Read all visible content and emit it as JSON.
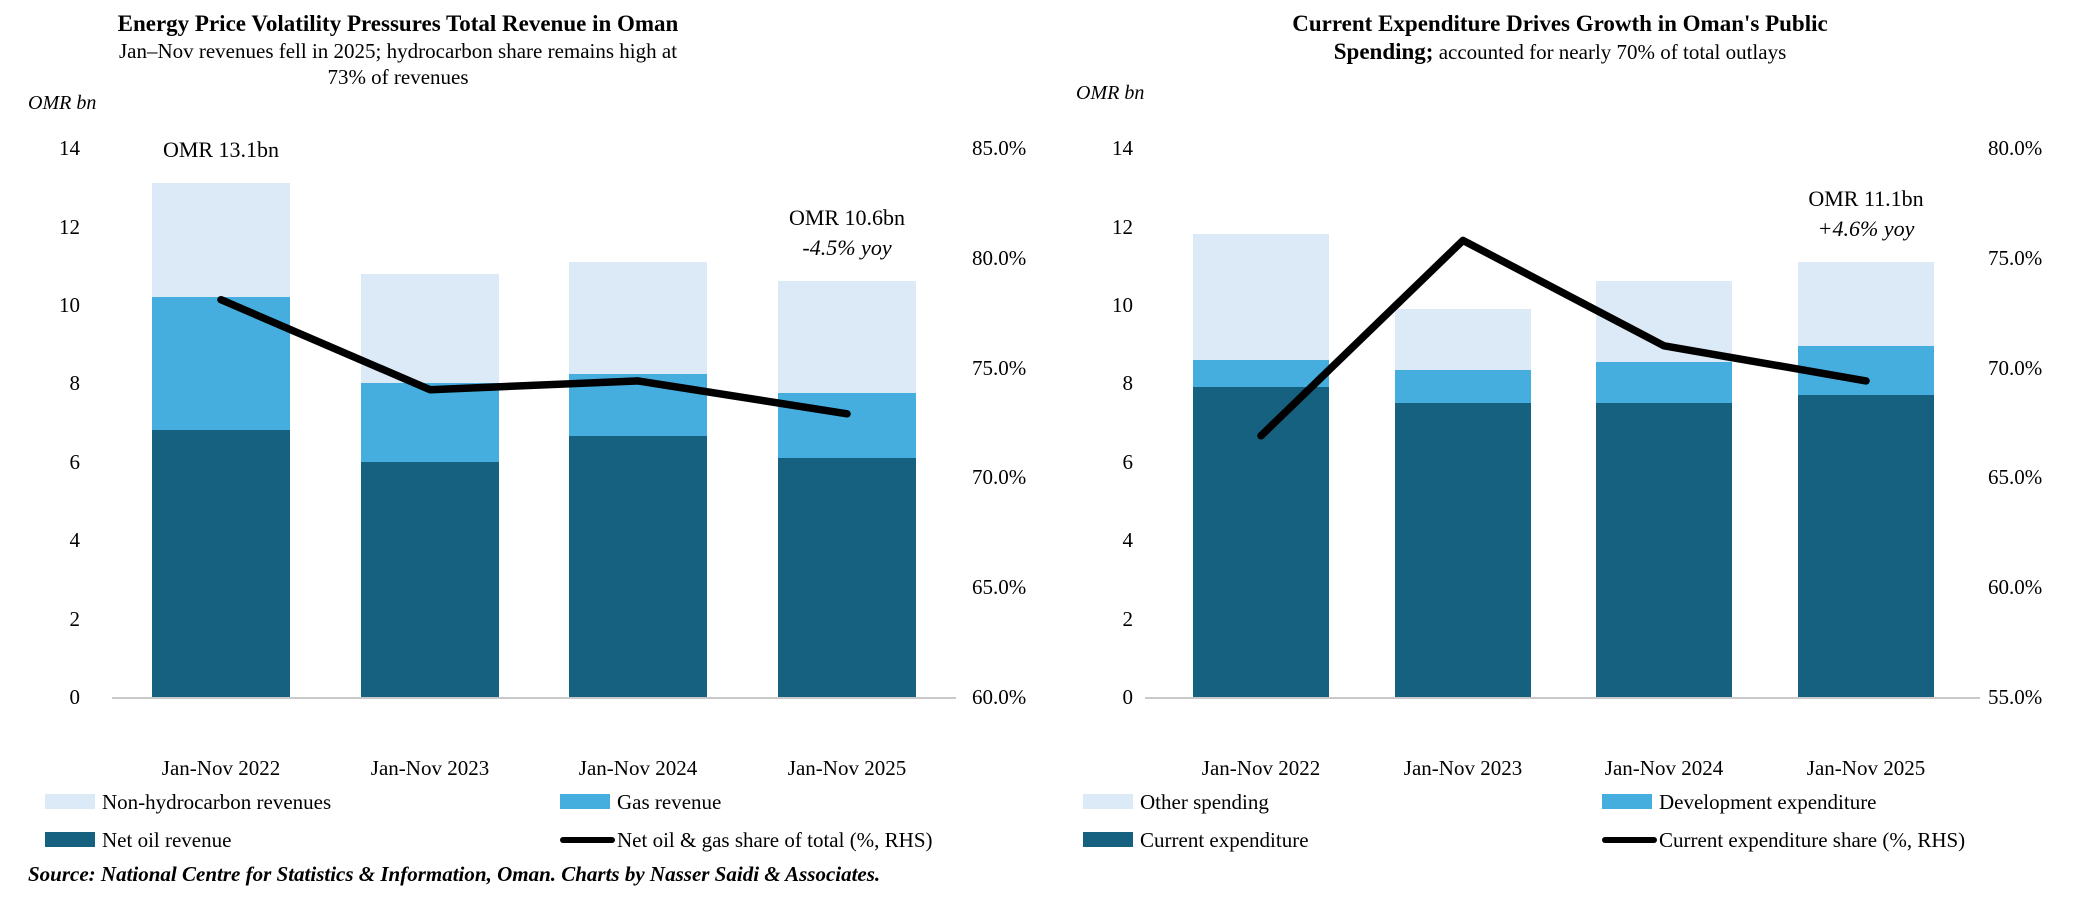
{
  "source_note": "Source: National Centre for Statistics & Information, Oman. Charts by Nasser Saidi & Associates.",
  "chart_data": [
    {
      "type": "stacked-bar+line",
      "title": "Energy Price Volatility Pressures Total Revenue in Oman",
      "subtitle_lines": [
        "Jan–Nov revenues fell in 2025; hydrocarbon share remains high at",
        "73% of revenues"
      ],
      "unit_label": "OMR bn",
      "categories": [
        "Jan-Nov 2022",
        "Jan-Nov 2023",
        "Jan-Nov 2024",
        "Jan-Nov 2025"
      ],
      "bar_series": [
        {
          "name": "Net oil revenue",
          "color": "#16617f",
          "values": [
            6.8,
            6.0,
            6.65,
            6.1
          ]
        },
        {
          "name": "Gas revenue",
          "color": "#45aedf",
          "values": [
            3.4,
            2.0,
            1.6,
            1.65
          ]
        },
        {
          "name": "Non-hydrocarbon revenues",
          "color": "#dce9f6",
          "values": [
            2.9,
            2.8,
            2.85,
            2.85
          ]
        }
      ],
      "bar_totals": [
        13.1,
        10.8,
        11.1,
        10.6
      ],
      "line_series": {
        "name": "Net oil & gas share of total (%, RHS)",
        "color": "#000000",
        "values": [
          78.1,
          74.0,
          74.4,
          72.9
        ]
      },
      "lhs_ticks": [
        "14",
        "12",
        "10",
        "8",
        "6",
        "4",
        "2",
        "0"
      ],
      "rhs_ticks": [
        "85.0%",
        "80.0%",
        "75.0%",
        "70.0%",
        "65.0%",
        "60.0%"
      ],
      "lhs_range": [
        0,
        14
      ],
      "rhs_range": [
        60,
        85
      ],
      "annotations": [
        {
          "bar": 0,
          "lines": [
            "OMR 13.1bn"
          ]
        },
        {
          "bar": 3,
          "lines": [
            "OMR 10.6bn",
            "-4.5% yoy"
          ]
        }
      ],
      "legend_order": [
        "Non-hydrocarbon revenues",
        "Gas revenue",
        "Net oil revenue",
        "Net oil & gas share of total (%, RHS)"
      ]
    },
    {
      "type": "stacked-bar+line",
      "title_lines_bold": [
        "Current Expenditure Drives Growth in Oman's Public",
        "Spending;"
      ],
      "subtitle_text": " accounted for nearly 70% of total outlays",
      "unit_label": "OMR bn",
      "categories": [
        "Jan-Nov 2022",
        "Jan-Nov 2023",
        "Jan-Nov 2024",
        "Jan-Nov 2025"
      ],
      "bar_series": [
        {
          "name": "Current expenditure",
          "color": "#16617f",
          "values": [
            7.9,
            7.5,
            7.5,
            7.7
          ]
        },
        {
          "name": "Development expenditure",
          "color": "#45aedf",
          "values": [
            0.7,
            0.85,
            1.05,
            1.25
          ]
        },
        {
          "name": "Other spending",
          "color": "#dce9f6",
          "values": [
            3.2,
            1.55,
            2.05,
            2.15
          ]
        }
      ],
      "bar_totals": [
        11.8,
        9.9,
        10.6,
        11.1
      ],
      "line_series": {
        "name": "Current expenditure share (%, RHS)",
        "color": "#000000",
        "values": [
          66.9,
          75.8,
          71.0,
          69.4
        ]
      },
      "lhs_ticks": [
        "14",
        "12",
        "10",
        "8",
        "6",
        "4",
        "2",
        "0"
      ],
      "rhs_ticks": [
        "80.0%",
        "75.0%",
        "70.0%",
        "65.0%",
        "60.0%",
        "55.0%"
      ],
      "lhs_range": [
        0,
        14
      ],
      "rhs_range": [
        55,
        80
      ],
      "annotations": [
        {
          "bar": 3,
          "lines": [
            "OMR 11.1bn",
            "+4.6% yoy"
          ]
        }
      ],
      "legend_order": [
        "Other spending",
        "Development expenditure",
        "Current expenditure",
        "Current expenditure share (%, RHS)"
      ]
    }
  ]
}
